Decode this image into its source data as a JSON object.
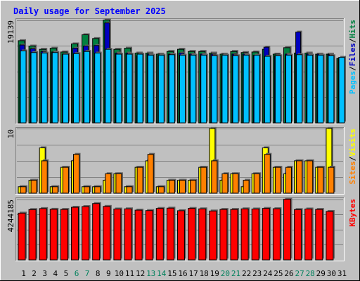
{
  "chart_data": {
    "type": "bar",
    "title": "Daily usage for September 2025",
    "days": [
      "1",
      "2",
      "3",
      "4",
      "5",
      "6",
      "7",
      "8",
      "9",
      "10",
      "11",
      "12",
      "13",
      "14",
      "15",
      "16",
      "17",
      "18",
      "19",
      "20",
      "21",
      "22",
      "23",
      "24",
      "25",
      "26",
      "27",
      "28",
      "29",
      "30",
      "31"
    ],
    "weekend_days": [
      "6",
      "7",
      "13",
      "14",
      "20",
      "21",
      "27",
      "28"
    ],
    "panels": [
      {
        "name": "hits-files-pages",
        "max_label": "19139",
        "ylim": [
          0,
          19139
        ],
        "legend": [
          {
            "label": "Pages",
            "color": "#00C0FF"
          },
          {
            "sep": "/"
          },
          {
            "label": "Files",
            "color": "#0000C0"
          },
          {
            "sep": "/"
          },
          {
            "label": "Hits",
            "color": "#008040"
          }
        ],
        "series": [
          {
            "label": "Hits",
            "color": "#008040",
            "values": [
              15300,
              14300,
              13700,
              13900,
              13200,
              14700,
              16400,
              15700,
              19139,
              13700,
              13900,
              13000,
              13000,
              12800,
              13300,
              13700,
              13300,
              13300,
              13000,
              12800,
              13300,
              13100,
              13200,
              13700,
              12800,
              14000,
              13000,
              13000,
              12800,
              12800,
              12000
            ]
          },
          {
            "label": "Files",
            "color": "#0000C0",
            "values": [
              14500,
              13800,
              13300,
              13200,
              12800,
              13900,
              14300,
              14400,
              18600,
              13000,
              13000,
              12500,
              12800,
              12500,
              12800,
              13000,
              12800,
              12800,
              12800,
              12500,
              12800,
              12800,
              12600,
              14100,
              12500,
              12800,
              16900,
              12800,
              12800,
              12700,
              12000
            ]
          },
          {
            "label": "Pages",
            "color": "#00C0FF",
            "values": [
              13400,
              13100,
              13000,
              13100,
              12800,
              12900,
              13300,
              13000,
              13700,
              12800,
              12800,
              12800,
              12600,
              12600,
              12700,
              12600,
              12600,
              12600,
              12500,
              12600,
              12500,
              12600,
              12600,
              12400,
              12500,
              12600,
              12700,
              12600,
              12600,
              12500,
              12200
            ]
          }
        ]
      },
      {
        "name": "visits-sites",
        "max_label": "10",
        "ylim": [
          0,
          10
        ],
        "legend": [
          {
            "label": "Sites",
            "color": "#FF8000"
          },
          {
            "sep": "/"
          },
          {
            "label": "Visits",
            "color": "#FFFF00"
          }
        ],
        "series": [
          {
            "label": "Visits",
            "color": "#FFFF00",
            "values": [
              1,
              2,
              7,
              1,
              4,
              5,
              1,
              1,
              2,
              3,
              1,
              4,
              5,
              1,
              2,
              2,
              2,
              4,
              10,
              2,
              3,
              1,
              3,
              7,
              4,
              3,
              5,
              5,
              4,
              10,
              0
            ]
          },
          {
            "label": "Sites",
            "color": "#FF8000",
            "values": [
              1,
              2,
              5,
              1,
              4,
              6,
              1,
              1,
              3,
              3,
              1,
              4,
              6,
              1,
              2,
              2,
              2,
              4,
              5,
              3,
              3,
              2,
              3,
              6,
              4,
              4,
              5,
              5,
              4,
              4,
              0
            ]
          }
        ]
      },
      {
        "name": "kbytes",
        "max_label": "4244185",
        "ylim": [
          0,
          4244185
        ],
        "legend": [
          {
            "label": "KBytes",
            "color": "#FF0000"
          }
        ],
        "series": [
          {
            "label": "KBytes",
            "color": "#FF0000",
            "values": [
              3270000,
              3520000,
              3590000,
              3540000,
              3530000,
              3680000,
              3730000,
              3940000,
              3740000,
              3560000,
              3570000,
              3480000,
              3450000,
              3600000,
              3620000,
              3440000,
              3600000,
              3570000,
              3420000,
              3530000,
              3530000,
              3570000,
              3560000,
              3600000,
              3580000,
              4244185,
              3520000,
              3560000,
              3530000,
              3390000,
              0
            ]
          }
        ]
      }
    ]
  }
}
